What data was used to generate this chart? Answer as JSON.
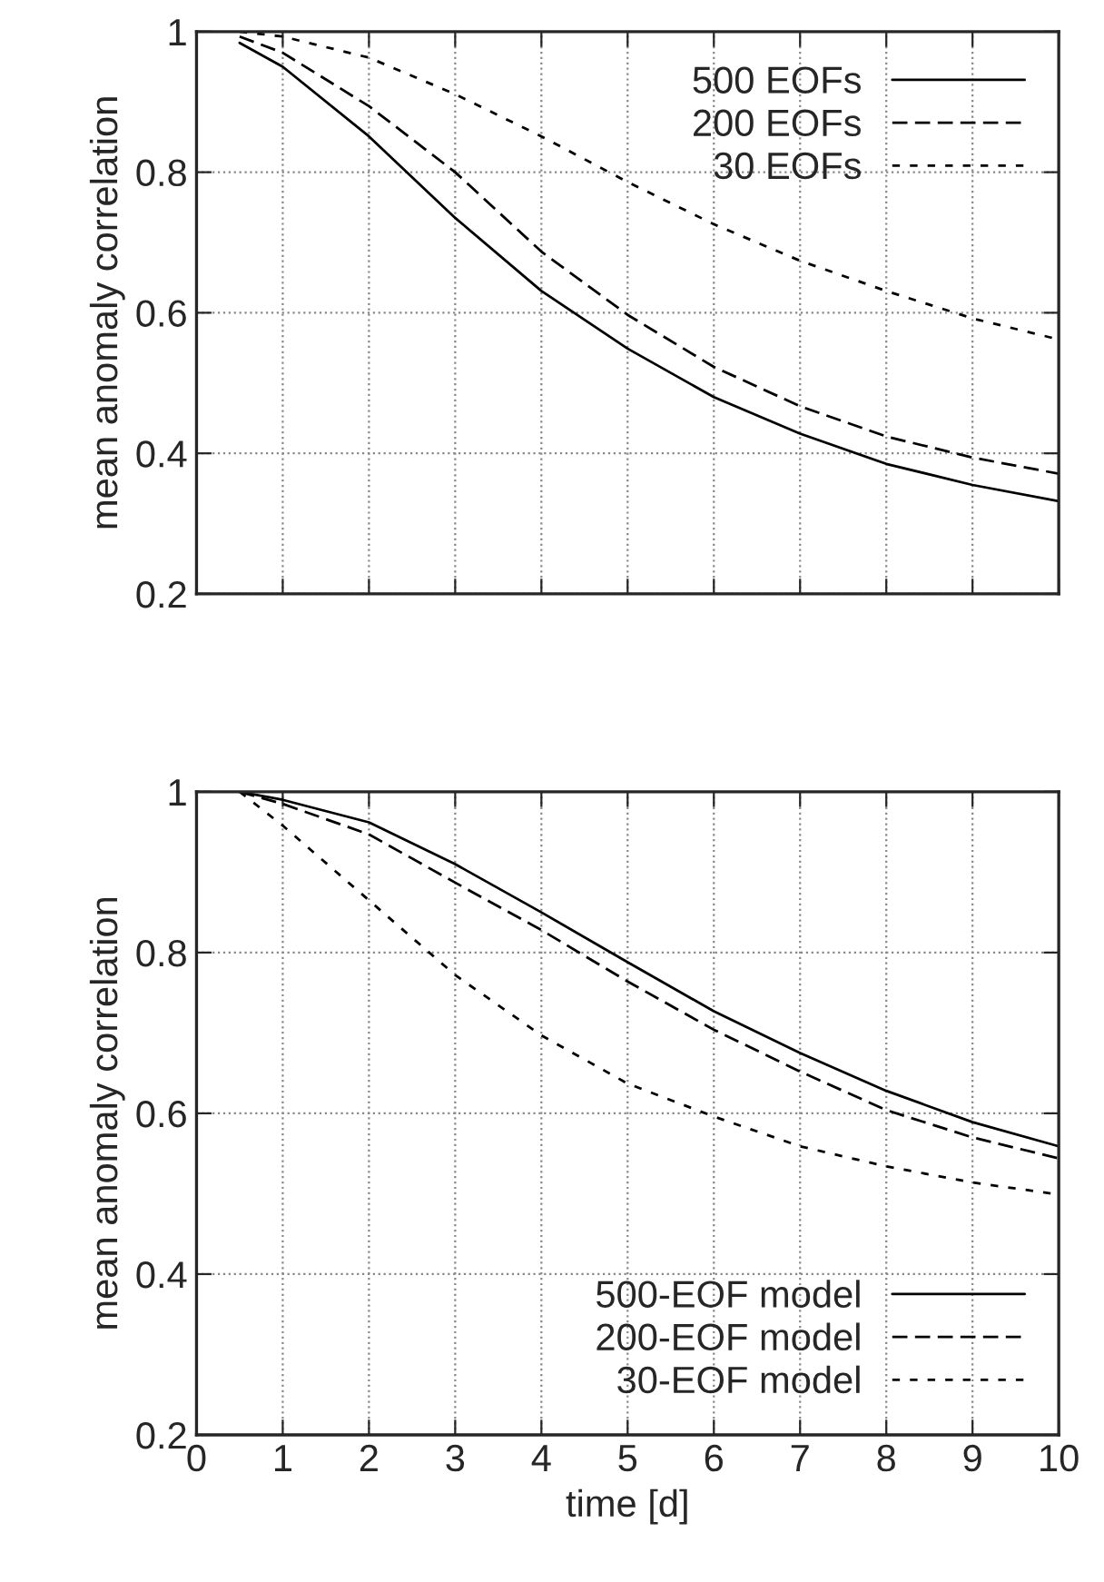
{
  "chart_data": [
    {
      "type": "line",
      "ylabel": "mean anomaly correlation",
      "xlim": [
        0,
        10
      ],
      "xticks": [
        0,
        1,
        2,
        3,
        4,
        5,
        6,
        7,
        8,
        9,
        10
      ],
      "ylim": [
        0.2,
        1
      ],
      "yticks": [
        0.2,
        0.4,
        0.6,
        0.8,
        1
      ],
      "grid": true,
      "legend": "top right",
      "tick_labels": "y",
      "x": [
        0.5,
        1,
        2,
        3,
        4,
        5,
        6,
        7,
        8,
        9,
        10
      ],
      "series": [
        {
          "name": "500 EOFs",
          "color": "#000000",
          "line_style": "solid",
          "values": [
            0.984,
            0.95,
            0.851,
            0.735,
            0.631,
            0.549,
            0.48,
            0.428,
            0.385,
            0.355,
            0.332
          ]
        },
        {
          "name": "200 EOFs",
          "color": "#000000",
          "line_style": "dashed",
          "values": [
            0.993,
            0.97,
            0.894,
            0.8,
            0.687,
            0.597,
            0.523,
            0.467,
            0.424,
            0.394,
            0.371
          ]
        },
        {
          "name": "30 EOFs",
          "color": "#000000",
          "line_style": "dotted",
          "values": [
            1.0,
            0.993,
            0.963,
            0.911,
            0.851,
            0.786,
            0.726,
            0.674,
            0.631,
            0.592,
            0.562
          ]
        }
      ]
    },
    {
      "type": "line",
      "xlabel": "time [d]",
      "ylabel": "mean anomaly correlation",
      "xlim": [
        0,
        10
      ],
      "xticks": [
        0,
        1,
        2,
        3,
        4,
        5,
        6,
        7,
        8,
        9,
        10
      ],
      "ylim": [
        0.2,
        1
      ],
      "yticks": [
        0.2,
        0.4,
        0.6,
        0.8,
        1
      ],
      "grid": true,
      "legend": "bottom right",
      "x": [
        0.5,
        1,
        2,
        3,
        4,
        5,
        6,
        7,
        8,
        9,
        10
      ],
      "series": [
        {
          "name": "500-EOF model",
          "color": "#000000",
          "line_style": "solid",
          "values": [
            1.0,
            0.99,
            0.962,
            0.91,
            0.85,
            0.788,
            0.727,
            0.675,
            0.628,
            0.589,
            0.559
          ]
        },
        {
          "name": "200-EOF model",
          "color": "#000000",
          "line_style": "dashed",
          "values": [
            1.0,
            0.985,
            0.947,
            0.887,
            0.828,
            0.764,
            0.704,
            0.652,
            0.604,
            0.57,
            0.544
          ]
        },
        {
          "name": "30-EOF model",
          "color": "#000000",
          "line_style": "dotted",
          "values": [
            1.0,
            0.958,
            0.865,
            0.772,
            0.697,
            0.637,
            0.596,
            0.559,
            0.534,
            0.514,
            0.499
          ]
        }
      ]
    }
  ]
}
